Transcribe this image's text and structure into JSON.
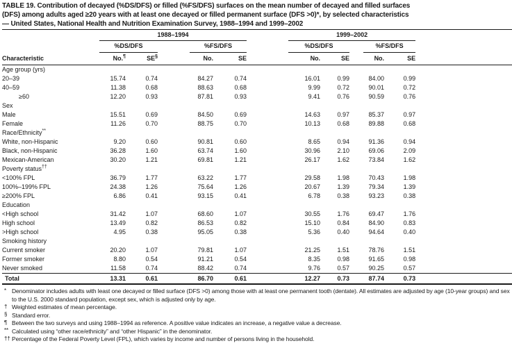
{
  "title_lines": [
    "TABLE 19. Contribution of decayed (%DS/DFS) or filled (%FS/DFS) surfaces on the mean number of decayed and filled surfaces",
    "(DFS) among adults aged ≥20 years with at least one decayed or filled permanent surface (DFS >0)*, by selected characteristics",
    "— United States, National Health and Nutrition Examination Survey, 1988–1994 and 1999–2002"
  ],
  "header": {
    "characteristic": "Characteristic",
    "periods": [
      "1988–1994",
      "1999–2002"
    ],
    "measure_ds": "%DS/DFS",
    "measure_fs": "%FS/DFS",
    "no_label": "No.",
    "se_label": "SE",
    "no_sup": "¶",
    "se_sup": "§"
  },
  "table": {
    "sections": [
      {
        "label": "Age group (yrs)",
        "sup": "",
        "rows": [
          {
            "label": "20–39",
            "values": [
              "15.74",
              "0.74",
              "84.27",
              "0.74",
              "16.01",
              "0.99",
              "84.00",
              "0.99"
            ]
          },
          {
            "label": "40–59",
            "values": [
              "11.38",
              "0.68",
              "88.63",
              "0.68",
              "9.99",
              "0.72",
              "90.01",
              "0.72"
            ]
          },
          {
            "label": "≥60",
            "indent": true,
            "values": [
              "12.20",
              "0.93",
              "87.81",
              "0.93",
              "9.41",
              "0.76",
              "90.59",
              "0.76"
            ]
          }
        ]
      },
      {
        "label": "Sex",
        "sup": "",
        "rows": [
          {
            "label": "Male",
            "values": [
              "15.51",
              "0.69",
              "84.50",
              "0.69",
              "14.63",
              "0.97",
              "85.37",
              "0.97"
            ]
          },
          {
            "label": "Female",
            "values": [
              "11.26",
              "0.70",
              "88.75",
              "0.70",
              "10.13",
              "0.68",
              "89.88",
              "0.68"
            ]
          }
        ]
      },
      {
        "label": "Race/Ethnicity",
        "sup": "**",
        "rows": [
          {
            "label": "White, non-Hispanic",
            "values": [
              "9.20",
              "0.60",
              "90.81",
              "0.60",
              "8.65",
              "0.94",
              "91.36",
              "0.94"
            ]
          },
          {
            "label": "Black, non-Hispanic",
            "values": [
              "36.28",
              "1.60",
              "63.74",
              "1.60",
              "30.96",
              "2.10",
              "69.06",
              "2.09"
            ]
          },
          {
            "label": "Mexican-American",
            "values": [
              "30.20",
              "1.21",
              "69.81",
              "1.21",
              "26.17",
              "1.62",
              "73.84",
              "1.62"
            ]
          }
        ]
      },
      {
        "label": "Poverty status",
        "sup": "††",
        "rows": [
          {
            "label": "<100% FPL",
            "values": [
              "36.79",
              "1.77",
              "63.22",
              "1.77",
              "29.58",
              "1.98",
              "70.43",
              "1.98"
            ]
          },
          {
            "label": "100%–199% FPL",
            "values": [
              "24.38",
              "1.26",
              "75.64",
              "1.26",
              "20.67",
              "1.39",
              "79.34",
              "1.39"
            ]
          },
          {
            "label": "≥200% FPL",
            "values": [
              "6.86",
              "0.41",
              "93.15",
              "0.41",
              "6.78",
              "0.38",
              "93.23",
              "0.38"
            ]
          }
        ]
      },
      {
        "label": "Education",
        "sup": "",
        "rows": [
          {
            "label": "<High school",
            "values": [
              "31.42",
              "1.07",
              "68.60",
              "1.07",
              "30.55",
              "1.76",
              "69.47",
              "1.76"
            ]
          },
          {
            "label": "High school",
            "values": [
              "13.49",
              "0.82",
              "86.53",
              "0.82",
              "15.10",
              "0.84",
              "84.90",
              "0.83"
            ]
          },
          {
            "label": ">High school",
            "values": [
              "4.95",
              "0.38",
              "95.05",
              "0.38",
              "5.36",
              "0.40",
              "94.64",
              "0.40"
            ]
          }
        ]
      },
      {
        "label": "Smoking history",
        "sup": "",
        "rows": [
          {
            "label": "Current smoker",
            "values": [
              "20.20",
              "1.07",
              "79.81",
              "1.07",
              "21.25",
              "1.51",
              "78.76",
              "1.51"
            ]
          },
          {
            "label": "Former smoker",
            "values": [
              "8.80",
              "0.54",
              "91.21",
              "0.54",
              "8.35",
              "0.98",
              "91.65",
              "0.98"
            ]
          },
          {
            "label": "Never smoked",
            "values": [
              "11.58",
              "0.74",
              "88.42",
              "0.74",
              "9.76",
              "0.57",
              "90.25",
              "0.57"
            ]
          }
        ]
      }
    ],
    "total": {
      "label": "Total",
      "values": [
        "13.31",
        "0.61",
        "86.70",
        "0.61",
        "12.27",
        "0.73",
        "87.74",
        "0.73"
      ]
    }
  },
  "footnotes": [
    {
      "sym": "*",
      "text": "Denominator includes adults with least one decayed or filled surface (DFS >0) among those with at least one permanent tooth (dentate).  All estimates are adjusted by age (10-year groups) and sex to the U.S. 2000 standard population, except sex, which is adjusted only by age."
    },
    {
      "sym": "†",
      "text": "Weighted estimates of mean percentage."
    },
    {
      "sym": "§",
      "text": "Standard error."
    },
    {
      "sym": "¶",
      "text": "Between the two surveys and using 1988–1994 as reference. A positive value indicates an increase, a negative value a decrease."
    },
    {
      "sym": "**",
      "text": "Calculated using “other race/ethnicity” and “other Hispanic” in the denominator."
    },
    {
      "sym": "††",
      "text": "Percentage of the Federal Poverty Level (FPL), which varies by income and number of persons living in the household."
    }
  ]
}
